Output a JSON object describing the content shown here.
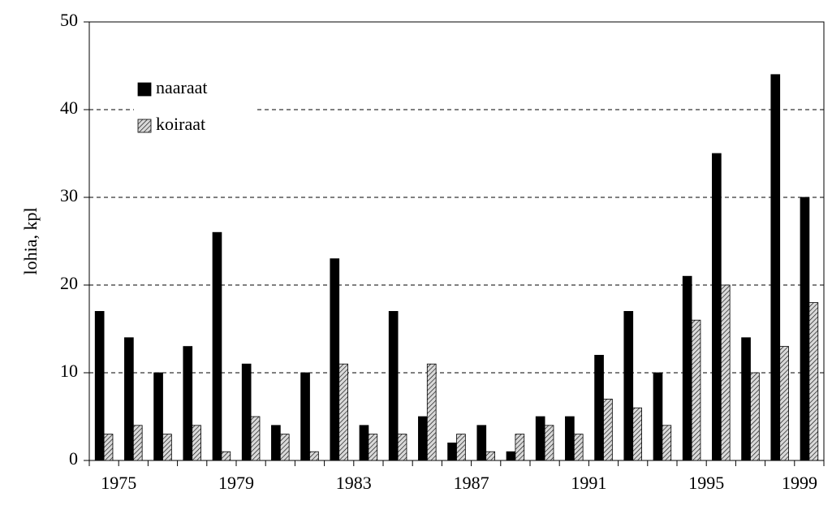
{
  "chart_data": {
    "type": "bar",
    "ylabel": "lohia, kpl",
    "categories": [
      "1975",
      null,
      null,
      null,
      "1979",
      null,
      null,
      null,
      "1983",
      null,
      null,
      null,
      "1987",
      null,
      null,
      null,
      "1991",
      null,
      null,
      null,
      "1995",
      null,
      null,
      null,
      "1999"
    ],
    "series": [
      {
        "name": "naaraat",
        "color": "#000000",
        "values": [
          17,
          14,
          10,
          13,
          26,
          11,
          4,
          10,
          23,
          4,
          17,
          5,
          2,
          4,
          1,
          5,
          5,
          12,
          17,
          10,
          21,
          35,
          14,
          44,
          30
        ]
      },
      {
        "name": "koiraat",
        "color": "#d9d9d9",
        "hatch": true,
        "values": [
          3,
          4,
          3,
          4,
          1,
          5,
          3,
          1,
          11,
          3,
          3,
          11,
          3,
          1,
          3,
          4,
          3,
          7,
          6,
          4,
          16,
          20,
          10,
          13,
          18
        ]
      }
    ],
    "ylim": [
      0,
      50
    ],
    "yticks": [
      0,
      10,
      20,
      30,
      40,
      50
    ],
    "grid": true,
    "legend": "upper left"
  }
}
